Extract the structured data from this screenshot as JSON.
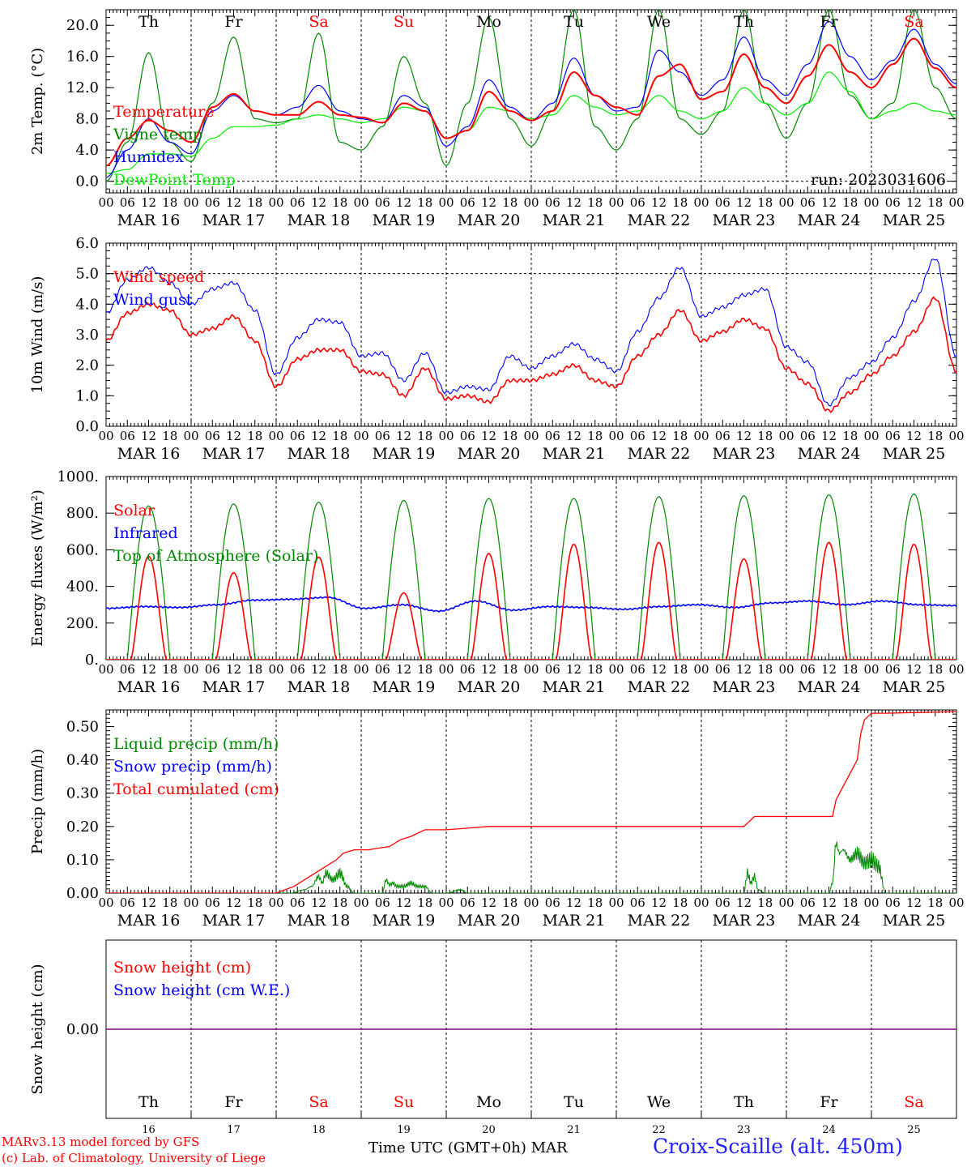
{
  "chart_data": [
    {
      "type": "line",
      "ylabel": "2m Temp. (°C)",
      "ylim": [
        -1.5,
        22
      ],
      "ytick_labels": [
        "0.0",
        "4.0",
        "8.0",
        "12.0",
        "16.0",
        "20.0"
      ],
      "ytick_values": [
        0,
        4,
        8,
        12,
        16,
        20
      ],
      "dashed_hline": 0,
      "run_label": "run: 2023031606",
      "day_labels": [
        "Th",
        "Fr",
        "Sa",
        "Su",
        "Mo",
        "Tu",
        "We",
        "Th",
        "Fr",
        "Sa"
      ],
      "hour_ticks": [
        "00",
        "06",
        "12",
        "18"
      ],
      "date_labels": [
        "MAR 16",
        "MAR 17",
        "MAR 18",
        "MAR 19",
        "MAR 20",
        "MAR 21",
        "MAR 22",
        "MAR 23",
        "MAR 24",
        "MAR 25"
      ],
      "x_hours": [
        0,
        6,
        12,
        18,
        24,
        30,
        36,
        42,
        48,
        54,
        60,
        66,
        72,
        78,
        84,
        90,
        96,
        102,
        108,
        114,
        120,
        126,
        132,
        138,
        144,
        150,
        156,
        162,
        168,
        174,
        180,
        186,
        192,
        198,
        204,
        210,
        216,
        222,
        228,
        234,
        240
      ],
      "series": [
        {
          "name": "Temperature",
          "color": "#ff0000",
          "values": [
            2.0,
            5.5,
            7.8,
            6.5,
            5.0,
            9.5,
            11.2,
            9.0,
            8.5,
            8.5,
            10.2,
            8.5,
            8.2,
            7.5,
            10.0,
            9.0,
            5.5,
            6.5,
            11.5,
            9.0,
            7.8,
            9.0,
            14.0,
            11.0,
            9.5,
            8.5,
            13.5,
            15.0,
            10.5,
            11.5,
            16.3,
            12.0,
            10.0,
            13.5,
            17.5,
            14.0,
            12.0,
            15.0,
            18.3,
            14.5,
            12.0
          ]
        },
        {
          "name": "Vigne temp",
          "color": "#008800",
          "values": [
            0.0,
            5.0,
            16.5,
            5.0,
            2.5,
            10.0,
            18.5,
            8.0,
            7.5,
            8.0,
            19.0,
            5.0,
            4.0,
            7.0,
            16.0,
            10.0,
            2.0,
            10.0,
            21.0,
            8.0,
            4.5,
            9.0,
            22.0,
            7.0,
            4.0,
            8.0,
            22.0,
            8.0,
            6.0,
            9.0,
            22.0,
            10.0,
            5.5,
            10.0,
            22.0,
            11.0,
            8.0,
            10.0,
            22.0,
            12.0,
            8.0
          ]
        },
        {
          "name": "Humidex",
          "color": "#0000ff",
          "values": [
            0.5,
            4.0,
            8.0,
            5.0,
            3.5,
            9.0,
            11.0,
            9.0,
            8.5,
            9.5,
            12.3,
            9.0,
            8.0,
            7.5,
            11.0,
            9.5,
            4.5,
            7.0,
            13.0,
            9.5,
            7.8,
            10.0,
            15.8,
            11.0,
            9.0,
            9.5,
            16.8,
            14.0,
            11.0,
            13.0,
            18.5,
            13.0,
            11.0,
            15.0,
            20.5,
            16.0,
            13.0,
            15.5,
            19.5,
            15.0,
            12.5
          ]
        },
        {
          "name": "DewPoint Temp",
          "color": "#00ee00",
          "values": [
            1.0,
            1.5,
            3.5,
            3.5,
            3.2,
            5.5,
            7.0,
            7.0,
            7.2,
            8.0,
            8.5,
            8.0,
            7.5,
            8.0,
            9.5,
            9.0,
            5.5,
            6.5,
            9.5,
            9.0,
            8.0,
            8.5,
            11.0,
            9.5,
            8.5,
            9.0,
            11.0,
            9.0,
            8.0,
            9.0,
            12.0,
            10.0,
            8.5,
            10.0,
            14.0,
            11.5,
            8.0,
            9.0,
            10.0,
            9.0,
            8.5
          ]
        }
      ]
    },
    {
      "type": "line",
      "ylabel": "10m Wind (m/s)",
      "ylim": [
        0,
        6.0
      ],
      "ytick_labels": [
        "0.0",
        "1.0",
        "2.0",
        "3.0",
        "4.0",
        "5.0",
        "6.0"
      ],
      "ytick_values": [
        0,
        1,
        2,
        3,
        4,
        5,
        6
      ],
      "dashed_hline": 5.0,
      "hour_ticks": [
        "00",
        "06",
        "12",
        "18"
      ],
      "date_labels": [
        "MAR 16",
        "MAR 17",
        "MAR 18",
        "MAR 19",
        "MAR 20",
        "MAR 21",
        "MAR 22",
        "MAR 23",
        "MAR 24",
        "MAR 25"
      ],
      "x_hours": [
        0,
        6,
        12,
        18,
        24,
        30,
        36,
        42,
        48,
        54,
        60,
        66,
        72,
        78,
        84,
        90,
        96,
        102,
        108,
        114,
        120,
        126,
        132,
        138,
        144,
        150,
        156,
        162,
        168,
        174,
        180,
        186,
        192,
        198,
        204,
        210,
        216,
        222,
        228,
        234,
        240
      ],
      "series": [
        {
          "name": "Wind speed",
          "color": "#ff0000",
          "values": [
            2.8,
            3.7,
            4.0,
            3.8,
            3.0,
            3.2,
            3.6,
            2.8,
            1.3,
            2.2,
            2.5,
            2.5,
            1.8,
            1.7,
            1.0,
            1.9,
            0.9,
            1.0,
            0.8,
            1.5,
            1.5,
            1.7,
            2.0,
            1.5,
            1.3,
            2.3,
            3.0,
            3.8,
            2.8,
            3.1,
            3.5,
            3.2,
            1.9,
            1.4,
            0.5,
            1.1,
            1.7,
            2.3,
            3.1,
            4.2,
            1.8
          ]
        },
        {
          "name": "Wind gust",
          "color": "#0000ff",
          "values": [
            3.7,
            4.8,
            5.2,
            4.7,
            4.0,
            4.5,
            4.7,
            3.8,
            1.7,
            2.9,
            3.5,
            3.4,
            2.3,
            2.4,
            1.5,
            2.4,
            1.1,
            1.3,
            1.2,
            2.3,
            1.9,
            2.3,
            2.7,
            2.2,
            1.8,
            3.1,
            4.2,
            5.2,
            3.6,
            3.9,
            4.3,
            4.5,
            2.6,
            2.1,
            0.7,
            1.6,
            2.1,
            2.9,
            4.1,
            5.5,
            2.3
          ]
        }
      ]
    },
    {
      "type": "line",
      "ylabel": "Energy fluxes (W/m²)",
      "ylim": [
        0,
        1000
      ],
      "ytick_labels": [
        "0.",
        "200.",
        "400.",
        "600.",
        "800.",
        "1000."
      ],
      "ytick_values": [
        0,
        200,
        400,
        600,
        800,
        1000
      ],
      "hour_ticks": [
        "00",
        "06",
        "12",
        "18"
      ],
      "date_labels": [
        "MAR 16",
        "MAR 17",
        "MAR 18",
        "MAR 19",
        "MAR 20",
        "MAR 21",
        "MAR 22",
        "MAR 23",
        "MAR 24",
        "MAR 25"
      ],
      "solar_peak": [
        565,
        475,
        560,
        365,
        580,
        630,
        640,
        550,
        640,
        630
      ],
      "toa_peak": [
        840,
        850,
        860,
        870,
        880,
        880,
        890,
        895,
        900,
        905
      ],
      "infrared": [
        280,
        290,
        285,
        300,
        325,
        330,
        340,
        280,
        300,
        265,
        320,
        270,
        290,
        285,
        275,
        290,
        300,
        285,
        310,
        320,
        300,
        320,
        300,
        295
      ],
      "series": [
        {
          "name": "Solar",
          "color": "#ff0000"
        },
        {
          "name": "Infrared",
          "color": "#0000ff"
        },
        {
          "name": "Top of Atmosphere (Solar)",
          "color": "#008800"
        }
      ]
    },
    {
      "type": "line",
      "ylabel": "Precip (mm/h)",
      "ylim": [
        0,
        0.55
      ],
      "ytick_labels": [
        "0.00",
        "0.10",
        "0.20",
        "0.30",
        "0.40",
        "0.50"
      ],
      "ytick_values": [
        0,
        0.1,
        0.2,
        0.3,
        0.4,
        0.5
      ],
      "hour_ticks": [
        "00",
        "06",
        "12",
        "18"
      ],
      "date_labels": [
        "MAR 16",
        "MAR 17",
        "MAR 18",
        "MAR 19",
        "MAR 20",
        "MAR 21",
        "MAR 22",
        "MAR 23",
        "MAR 24",
        "MAR 25"
      ],
      "cumulated_x": [
        0,
        48,
        53,
        56,
        59,
        62,
        65,
        67,
        70,
        74,
        77,
        80,
        83,
        86,
        90,
        96,
        102,
        108,
        120,
        144,
        168,
        180,
        182,
        183,
        205,
        206,
        212,
        213,
        214,
        216,
        220,
        240
      ],
      "cumulated_y": [
        0,
        0,
        0.02,
        0.04,
        0.06,
        0.08,
        0.1,
        0.12,
        0.13,
        0.13,
        0.135,
        0.14,
        0.16,
        0.17,
        0.19,
        0.19,
        0.195,
        0.2,
        0.2,
        0.2,
        0.2,
        0.2,
        0.22,
        0.23,
        0.23,
        0.28,
        0.4,
        0.48,
        0.52,
        0.54,
        0.54,
        0.545
      ],
      "liquid_x": [
        0,
        48,
        52,
        56,
        58,
        60,
        61,
        62,
        64,
        66,
        68,
        70,
        72,
        78,
        79,
        80,
        81,
        82,
        84,
        86,
        88,
        90,
        92,
        96,
        100,
        102,
        120,
        180,
        181,
        182,
        183,
        184,
        186,
        188,
        204,
        205,
        206,
        207,
        208,
        210,
        212,
        214,
        216,
        218,
        220,
        240
      ],
      "liquid_y": [
        0,
        0,
        0,
        0.01,
        0.02,
        0.05,
        0.03,
        0.06,
        0.04,
        0.06,
        0.02,
        0,
        0,
        0,
        0.04,
        0.025,
        0.03,
        0.02,
        0.02,
        0.03,
        0.02,
        0.02,
        0,
        0,
        0.01,
        0,
        0,
        0,
        0.06,
        0.03,
        0.05,
        0.01,
        0,
        0,
        0,
        0.03,
        0.15,
        0.12,
        0.13,
        0.1,
        0.12,
        0.09,
        0.1,
        0.08,
        0,
        0
      ],
      "series": [
        {
          "name": "Liquid precip (mm/h)",
          "color": "#008800"
        },
        {
          "name": "Snow precip (mm/h)",
          "color": "#0000ff"
        },
        {
          "name": "Total cumulated (cm)",
          "color": "#ff0000"
        }
      ]
    },
    {
      "type": "line",
      "ylabel": "Snow height (cm)",
      "ylim": [
        -1,
        1
      ],
      "ytick_labels": [
        "0.00"
      ],
      "ytick_values": [
        0
      ],
      "day_labels": [
        "Th",
        "Fr",
        "Sa",
        "Su",
        "Mo",
        "Tu",
        "We",
        "Th",
        "Fr",
        "Sa"
      ],
      "day_numbers": [
        "16",
        "17",
        "18",
        "19",
        "20",
        "21",
        "22",
        "23",
        "24",
        "25"
      ],
      "series": [
        {
          "name": "Snow height (cm)",
          "color": "#ff0000",
          "values": [
            0,
            0
          ]
        },
        {
          "name": "Snow height (cm W.E.)",
          "color": "#0000ff",
          "values": [
            0,
            0
          ]
        }
      ]
    }
  ],
  "weekend_color": "#ff0000",
  "footer": {
    "credit1": "MARv3.13 model forced by GFS",
    "credit2": "(c) Lab. of Climatology, University of Liege",
    "x_title": "Time UTC (GMT+0h)",
    "month": "MAR",
    "station": "Croix-Scaille (alt. 450m)"
  }
}
